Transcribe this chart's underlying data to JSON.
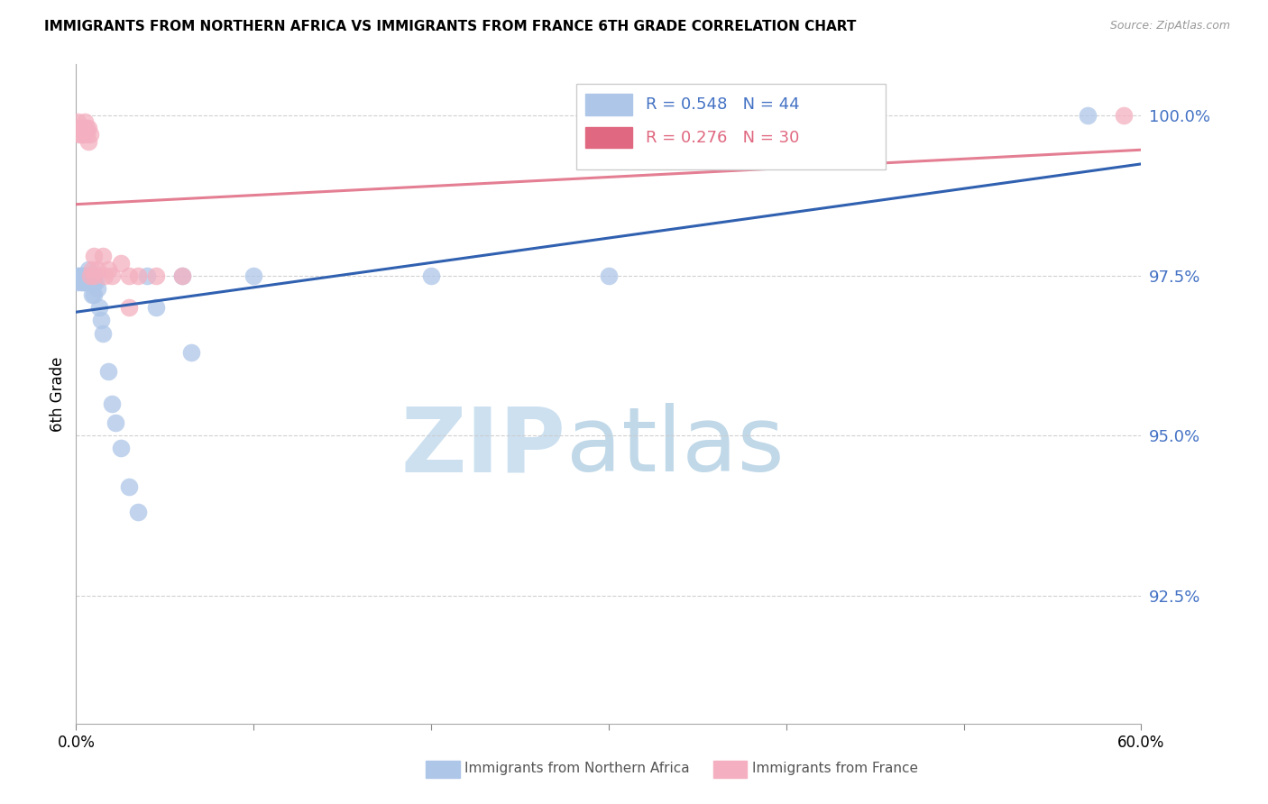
{
  "title": "IMMIGRANTS FROM NORTHERN AFRICA VS IMMIGRANTS FROM FRANCE 6TH GRADE CORRELATION CHART",
  "source": "Source: ZipAtlas.com",
  "ylabel": "6th Grade",
  "ytick_labels": [
    "100.0%",
    "97.5%",
    "95.0%",
    "92.5%"
  ],
  "ytick_values": [
    1.0,
    0.975,
    0.95,
    0.925
  ],
  "xlim": [
    0.0,
    0.6
  ],
  "ylim": [
    0.905,
    1.008
  ],
  "blue_color": "#aec6e8",
  "pink_color": "#f4b0c0",
  "blue_line_color": "#3060b0",
  "pink_line_color": "#e06880",
  "watermark_zip_color": "#cce0f0",
  "watermark_atlas_color": "#c0d8e8",
  "legend_R_blue": "0.548",
  "legend_N_blue": "44",
  "legend_R_pink": "0.276",
  "legend_N_pink": "30",
  "blue_x": [
    0.001,
    0.001,
    0.002,
    0.003,
    0.003,
    0.003,
    0.004,
    0.004,
    0.004,
    0.005,
    0.005,
    0.005,
    0.006,
    0.006,
    0.006,
    0.007,
    0.007,
    0.007,
    0.008,
    0.008,
    0.009,
    0.009,
    0.01,
    0.01,
    0.01,
    0.011,
    0.012,
    0.013,
    0.014,
    0.015,
    0.018,
    0.02,
    0.022,
    0.025,
    0.03,
    0.035,
    0.04,
    0.045,
    0.06,
    0.065,
    0.1,
    0.2,
    0.3,
    0.57
  ],
  "blue_y": [
    0.975,
    0.974,
    0.975,
    0.975,
    0.975,
    0.974,
    0.975,
    0.975,
    0.974,
    0.975,
    0.975,
    0.974,
    0.975,
    0.975,
    0.974,
    0.976,
    0.975,
    0.974,
    0.975,
    0.974,
    0.975,
    0.972,
    0.975,
    0.974,
    0.972,
    0.974,
    0.973,
    0.97,
    0.968,
    0.966,
    0.96,
    0.955,
    0.952,
    0.948,
    0.942,
    0.938,
    0.975,
    0.97,
    0.975,
    0.963,
    0.975,
    0.975,
    0.975,
    1.0
  ],
  "pink_x": [
    0.001,
    0.002,
    0.002,
    0.003,
    0.003,
    0.004,
    0.004,
    0.005,
    0.005,
    0.006,
    0.006,
    0.007,
    0.007,
    0.008,
    0.008,
    0.009,
    0.01,
    0.01,
    0.012,
    0.015,
    0.016,
    0.018,
    0.02,
    0.025,
    0.03,
    0.03,
    0.035,
    0.045,
    0.06,
    0.59
  ],
  "pink_y": [
    0.999,
    0.998,
    0.997,
    0.998,
    0.997,
    0.998,
    0.997,
    0.998,
    0.999,
    0.998,
    0.997,
    0.998,
    0.996,
    0.997,
    0.975,
    0.976,
    0.975,
    0.978,
    0.976,
    0.978,
    0.975,
    0.976,
    0.975,
    0.977,
    0.975,
    0.97,
    0.975,
    0.975,
    0.975,
    1.0
  ]
}
